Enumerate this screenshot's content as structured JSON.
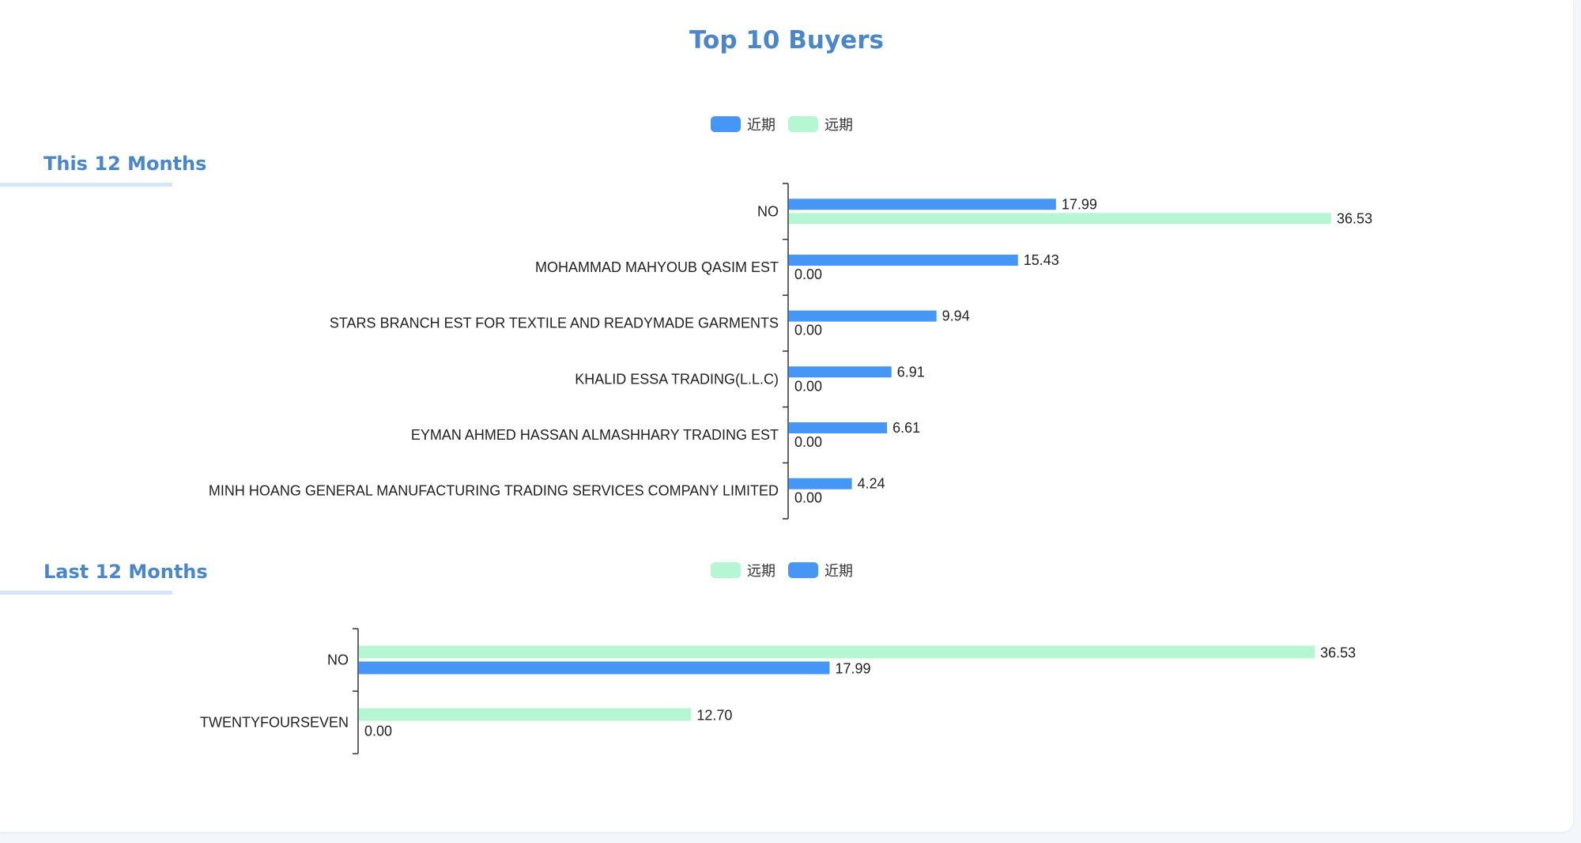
{
  "title": "Top 10 Buyers",
  "colors": {
    "title": "#4a86c8",
    "series_recent": "#4696f6",
    "series_distant": "#b5f7d2",
    "axis": "#333333",
    "text": "#222222"
  },
  "sections": [
    {
      "title": "This 12 Months",
      "legend": [
        {
          "name": "近期",
          "color": "#4696f6"
        },
        {
          "name": "远期",
          "color": "#b5f7d2"
        }
      ]
    },
    {
      "title": "Last 12 Months",
      "legend": [
        {
          "name": "远期",
          "color": "#b5f7d2"
        },
        {
          "name": "近期",
          "color": "#4696f6"
        }
      ]
    }
  ],
  "chart_data": [
    {
      "type": "bar",
      "orientation": "horizontal",
      "title": "This 12 Months",
      "categories": [
        "NO",
        "MOHAMMAD MAHYOUB QASIM EST",
        "STARS BRANCH EST FOR TEXTILE AND READYMADE GARMENTS",
        "KHALID ESSA TRADING(L.L.C)",
        "EYMAN AHMED HASSAN ALMASHHARY TRADING EST",
        "MINH HOANG GENERAL MANUFACTURING TRADING SERVICES COMPANY LIMITED"
      ],
      "series": [
        {
          "name": "近期",
          "color": "#4696f6",
          "values": [
            17.99,
            15.43,
            9.94,
            6.91,
            6.61,
            4.24
          ],
          "labels": [
            "17.99",
            "15.43",
            "9.94",
            "6.91",
            "6.61",
            "4.24"
          ]
        },
        {
          "name": "远期",
          "color": "#b5f7d2",
          "values": [
            36.53,
            0,
            0,
            0,
            0,
            0
          ],
          "labels": [
            "36.53",
            "0.00",
            "0.00",
            "0.00",
            "0.00",
            "0.00"
          ]
        }
      ],
      "xlim": [
        0,
        41
      ],
      "legend_position": "top-center",
      "grid": false
    },
    {
      "type": "bar",
      "orientation": "horizontal",
      "title": "Last 12 Months",
      "categories": [
        "NO",
        "TWENTYFOURSEVEN"
      ],
      "series": [
        {
          "name": "远期",
          "color": "#b5f7d2",
          "values": [
            36.53,
            12.7
          ],
          "labels": [
            "36.53",
            "12.70"
          ]
        },
        {
          "name": "近期",
          "color": "#4696f6",
          "values": [
            17.99,
            0
          ],
          "labels": [
            "17.99",
            "0.00"
          ]
        }
      ],
      "xlim": [
        0,
        43.5
      ],
      "legend_position": "top-center",
      "grid": false
    }
  ]
}
